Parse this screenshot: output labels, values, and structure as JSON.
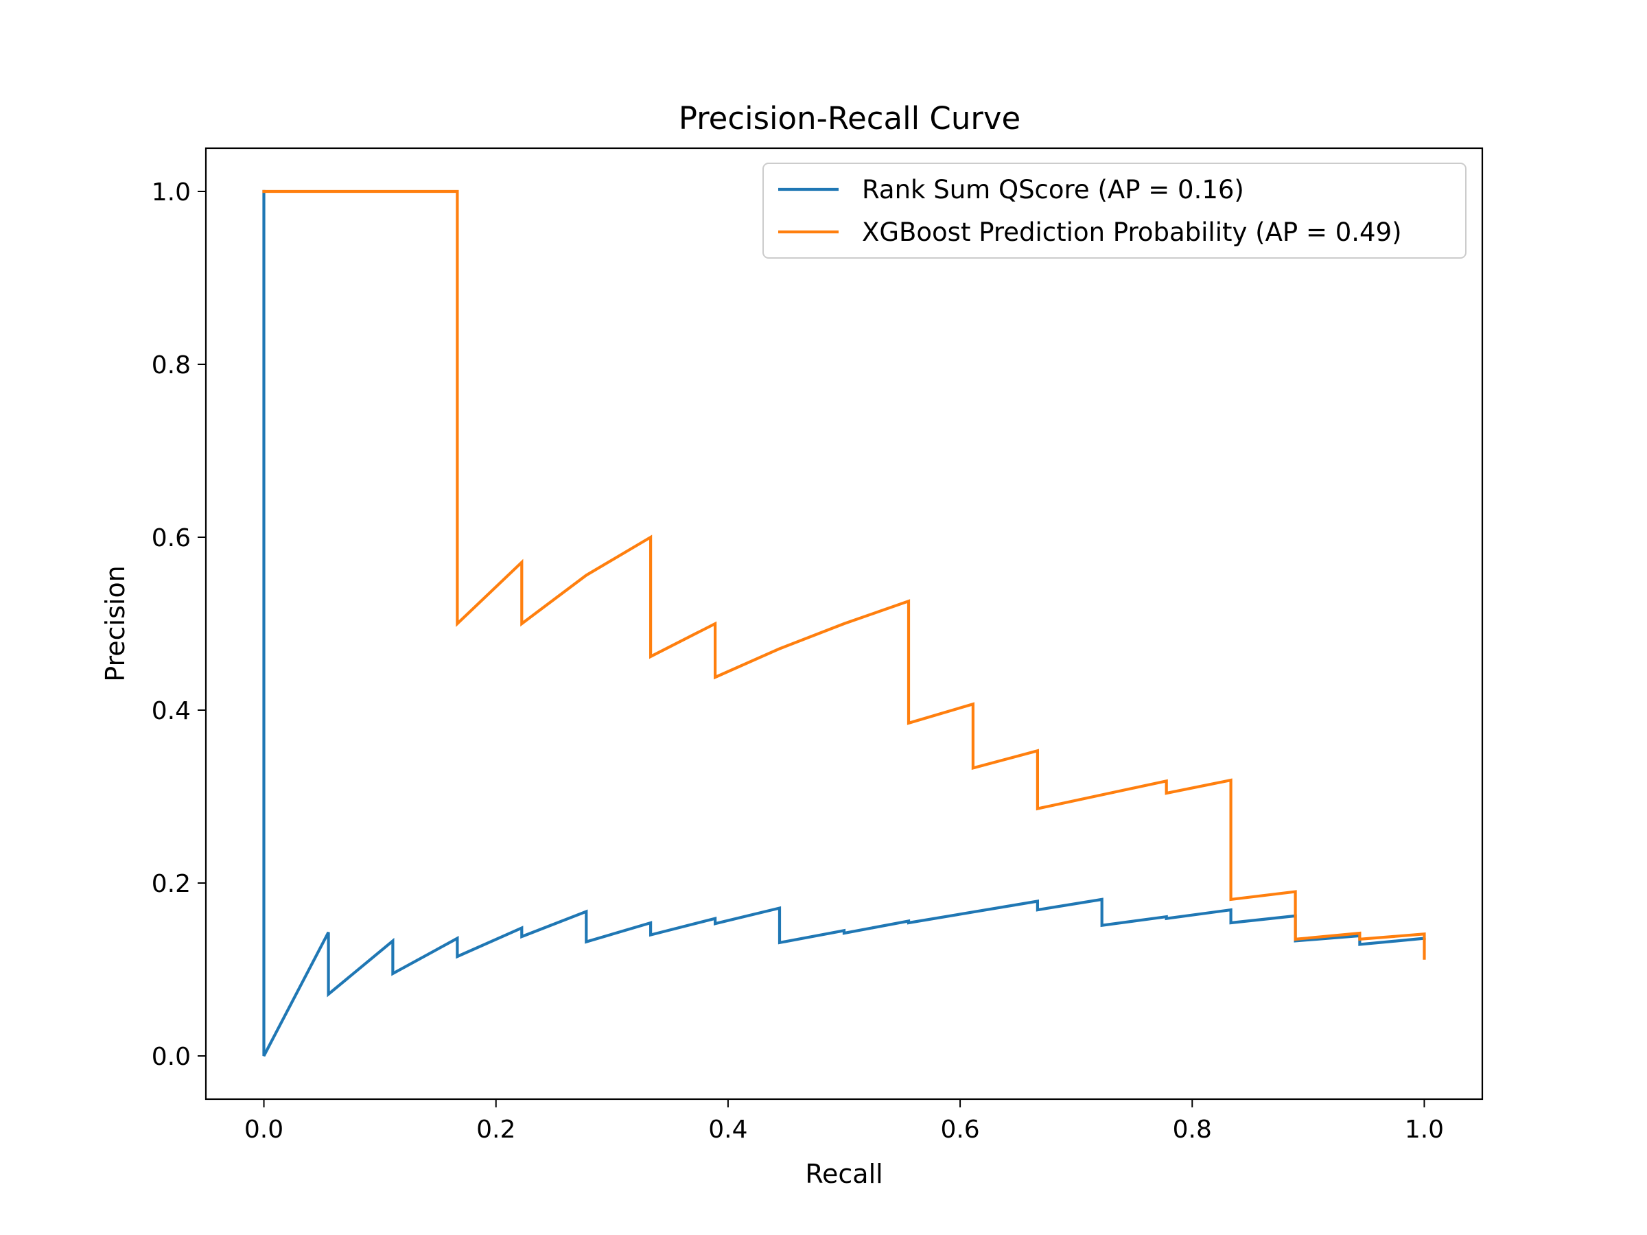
{
  "chart_data": {
    "type": "line",
    "title": "Precision-Recall Curve",
    "xlabel": "Recall",
    "ylabel": "Precision",
    "xlim": [
      -0.05,
      1.05
    ],
    "ylim": [
      -0.05,
      1.05
    ],
    "xticks": [
      0.0,
      0.2,
      0.4,
      0.6,
      0.8,
      1.0
    ],
    "yticks": [
      0.0,
      0.2,
      0.4,
      0.6,
      0.8,
      1.0
    ],
    "xtick_labels": [
      "0.0",
      "0.2",
      "0.4",
      "0.6",
      "0.8",
      "1.0"
    ],
    "ytick_labels": [
      "0.0",
      "0.2",
      "0.4",
      "0.6",
      "0.8",
      "1.0"
    ],
    "grid": false,
    "legend_position": "top-right",
    "series": [
      {
        "name": "Rank Sum QScore (AP = 0.16)",
        "color": "#1f77b4",
        "points": [
          [
            0.0,
            1.0
          ],
          [
            0.0,
            0.0
          ],
          [
            0.0556,
            0.143
          ],
          [
            0.0556,
            0.0714
          ],
          [
            0.1111,
            0.133
          ],
          [
            0.1111,
            0.0952
          ],
          [
            0.1667,
            0.136
          ],
          [
            0.1667,
            0.115
          ],
          [
            0.2222,
            0.148
          ],
          [
            0.2222,
            0.138
          ],
          [
            0.2778,
            0.167
          ],
          [
            0.2778,
            0.132
          ],
          [
            0.3333,
            0.154
          ],
          [
            0.3333,
            0.14
          ],
          [
            0.3889,
            0.159
          ],
          [
            0.3889,
            0.153
          ],
          [
            0.4444,
            0.171
          ],
          [
            0.4444,
            0.131
          ],
          [
            0.5,
            0.145
          ],
          [
            0.5,
            0.142
          ],
          [
            0.5556,
            0.156
          ],
          [
            0.5556,
            0.154
          ],
          [
            0.6667,
            0.179
          ],
          [
            0.6667,
            0.169
          ],
          [
            0.7222,
            0.181
          ],
          [
            0.7222,
            0.151
          ],
          [
            0.7778,
            0.161
          ],
          [
            0.7778,
            0.159
          ],
          [
            0.8333,
            0.169
          ],
          [
            0.8333,
            0.154
          ],
          [
            0.8889,
            0.162
          ],
          [
            0.8889,
            0.133
          ],
          [
            0.9444,
            0.139
          ],
          [
            0.9444,
            0.129
          ],
          [
            1.0,
            0.136
          ]
        ]
      },
      {
        "name": "XGBoost Prediction Probability (AP = 0.49)",
        "color": "#ff7f0e",
        "points": [
          [
            0.0,
            1.0
          ],
          [
            0.1667,
            1.0
          ],
          [
            0.1667,
            0.5
          ],
          [
            0.2222,
            0.571
          ],
          [
            0.2222,
            0.5
          ],
          [
            0.2778,
            0.556
          ],
          [
            0.3333,
            0.6
          ],
          [
            0.3333,
            0.462
          ],
          [
            0.3889,
            0.5
          ],
          [
            0.3889,
            0.438
          ],
          [
            0.4444,
            0.471
          ],
          [
            0.5,
            0.5
          ],
          [
            0.5556,
            0.526
          ],
          [
            0.5556,
            0.385
          ],
          [
            0.6111,
            0.407
          ],
          [
            0.6111,
            0.333
          ],
          [
            0.6667,
            0.353
          ],
          [
            0.6667,
            0.286
          ],
          [
            0.7778,
            0.318
          ],
          [
            0.7778,
            0.304
          ],
          [
            0.8333,
            0.319
          ],
          [
            0.8333,
            0.181
          ],
          [
            0.8889,
            0.19
          ],
          [
            0.8889,
            0.135
          ],
          [
            0.9444,
            0.142
          ],
          [
            0.9444,
            0.135
          ],
          [
            1.0,
            0.141
          ],
          [
            1.0,
            0.113
          ]
        ]
      }
    ]
  }
}
